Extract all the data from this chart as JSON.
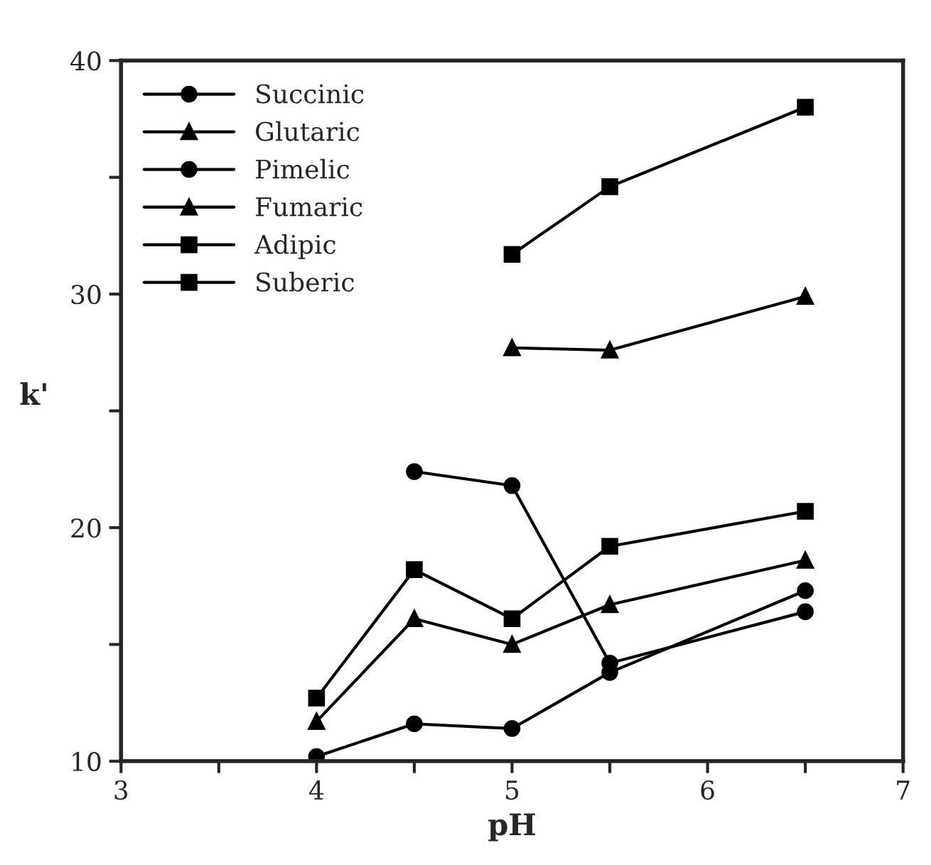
{
  "chart_data": {
    "type": "line",
    "xlabel": "pH",
    "ylabel": "k'",
    "xlim": [
      3,
      7
    ],
    "xticks": [
      3,
      {
        "value": 3.5,
        "label": null
      },
      4,
      {
        "value": 4.5,
        "label": null
      },
      5,
      {
        "value": 5.5,
        "label": null
      },
      6,
      {
        "value": 6.5,
        "label": null
      },
      7
    ],
    "ylim": [
      10,
      40
    ],
    "yticks": [
      10,
      {
        "value": 15,
        "label": null
      },
      20,
      {
        "value": 25,
        "label": null
      },
      30,
      {
        "value": 35,
        "label": null
      },
      40
    ],
    "grid": false,
    "legend": "top left",
    "line_style": "solid",
    "series": [
      {
        "name": "Succinic",
        "color": "#000000",
        "marker": "circle",
        "x": [
          4,
          4.5,
          5,
          5.5,
          6.5
        ],
        "values": [
          10.2,
          11.6,
          11.4,
          13.8,
          17.3
        ]
      },
      {
        "name": "Glutaric",
        "color": "#000000",
        "marker": "triangle",
        "x": [
          4,
          4.5,
          5,
          5.5,
          6.5
        ],
        "values": [
          11.7,
          16.1,
          15.0,
          16.7,
          18.6
        ]
      },
      {
        "name": "Pimelic",
        "color": "#000000",
        "marker": "circle",
        "x": [
          4.5,
          5,
          5.5,
          6.5
        ],
        "values": [
          22.4,
          21.8,
          14.2,
          16.4
        ]
      },
      {
        "name": "Fumaric",
        "color": "#000000",
        "marker": "triangle",
        "x": [
          5,
          5.5,
          6.5
        ],
        "values": [
          27.7,
          27.6,
          29.9
        ]
      },
      {
        "name": "Adipic",
        "color": "#000000",
        "marker": "square",
        "x": [
          4,
          4.5,
          5,
          5.5,
          6.5
        ],
        "values": [
          12.7,
          18.2,
          16.1,
          19.2,
          20.7
        ]
      },
      {
        "name": "Suberic",
        "color": "#000000",
        "marker": "square",
        "x": [
          5,
          5.5,
          6.5
        ],
        "values": [
          31.7,
          34.6,
          38.0
        ]
      }
    ]
  }
}
